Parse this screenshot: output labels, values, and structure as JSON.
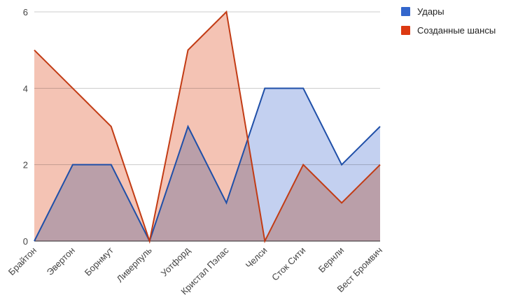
{
  "chart_data": {
    "type": "area",
    "categories": [
      "Брайтон",
      "Эвертон",
      "Борнмут",
      "Ливерпуль",
      "Уотфорд",
      "Кристал Пэлас",
      "Челси",
      "Сток Сити",
      "Бернли",
      "Вест Бромвич"
    ],
    "series": [
      {
        "name": "Удары",
        "values": [
          0,
          2,
          2,
          0,
          3,
          1,
          4,
          4,
          2,
          3
        ],
        "color": "#1f4fa8",
        "fill": "#c3d0f0",
        "legend_color": "#3366cc"
      },
      {
        "name": "Созданные шансы",
        "values": [
          5,
          4,
          3,
          0,
          5,
          6,
          0,
          2,
          1,
          2
        ],
        "color": "#c23b14",
        "fill": "#f4c3b4",
        "legend_color": "#dc3912"
      }
    ],
    "ylim": [
      0,
      6
    ],
    "yticks": [
      "0",
      "2",
      "4",
      "6"
    ],
    "grid": true,
    "legend_position": "right",
    "title": "",
    "xlabel": "",
    "ylabel": ""
  }
}
